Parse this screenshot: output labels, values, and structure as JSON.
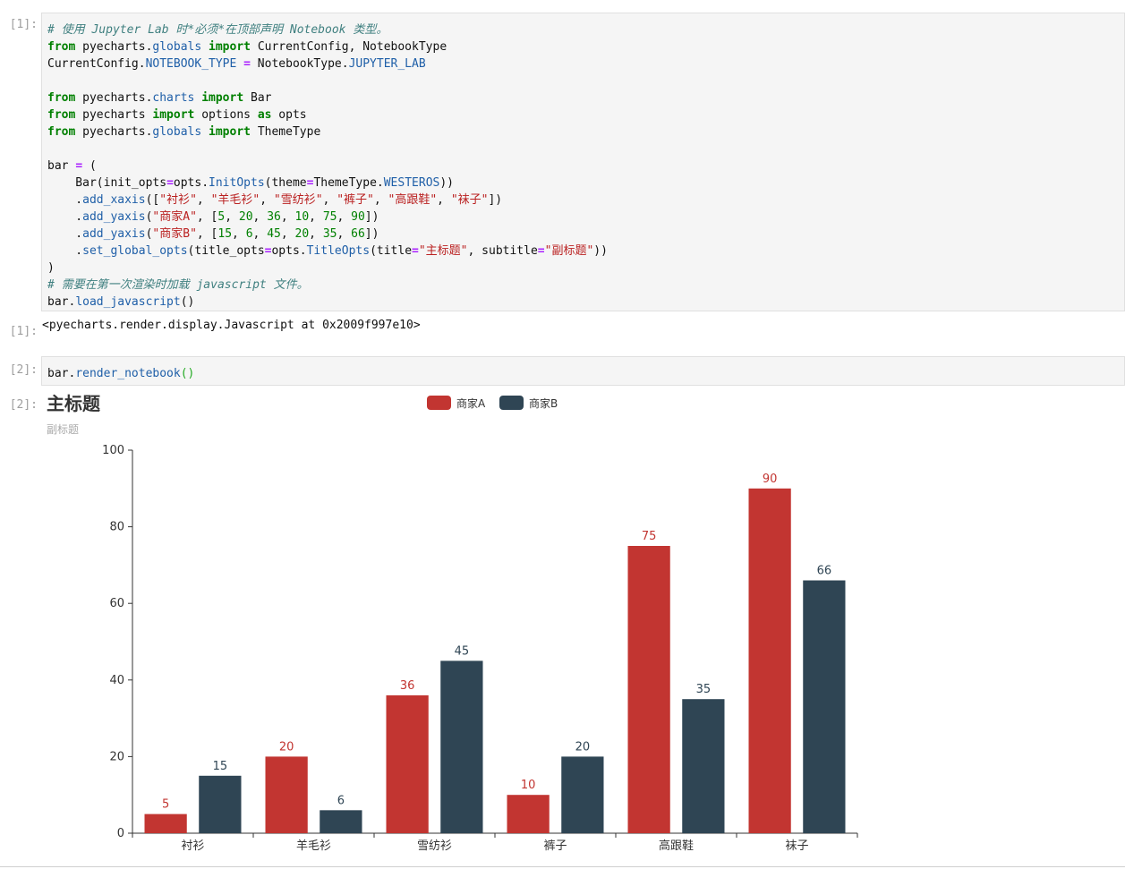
{
  "cell1": {
    "in_prompt": "[1]:",
    "out_prompt": "[1]:",
    "code": [
      [
        [
          "c",
          "# 使用 Jupyter Lab 时*必须*在顶部声明 Notebook 类型。"
        ]
      ],
      [
        [
          "k",
          "from"
        ],
        [
          "t",
          " pyecharts."
        ],
        [
          "a",
          "globals"
        ],
        [
          "t",
          " "
        ],
        [
          "k",
          "import"
        ],
        [
          "t",
          " CurrentConfig, NotebookType"
        ]
      ],
      [
        [
          "t",
          "CurrentConfig."
        ],
        [
          "a",
          "NOTEBOOK_TYPE"
        ],
        [
          "t",
          " "
        ],
        [
          "o",
          "="
        ],
        [
          "t",
          " NotebookType."
        ],
        [
          "a",
          "JUPYTER_LAB"
        ]
      ],
      [],
      [
        [
          "k",
          "from"
        ],
        [
          "t",
          " pyecharts."
        ],
        [
          "a",
          "charts"
        ],
        [
          "t",
          " "
        ],
        [
          "k",
          "import"
        ],
        [
          "t",
          " Bar"
        ]
      ],
      [
        [
          "k",
          "from"
        ],
        [
          "t",
          " pyecharts "
        ],
        [
          "k",
          "import"
        ],
        [
          "t",
          " options "
        ],
        [
          "k",
          "as"
        ],
        [
          "t",
          " opts"
        ]
      ],
      [
        [
          "k",
          "from"
        ],
        [
          "t",
          " pyecharts."
        ],
        [
          "a",
          "globals"
        ],
        [
          "t",
          " "
        ],
        [
          "k",
          "import"
        ],
        [
          "t",
          " ThemeType"
        ]
      ],
      [],
      [
        [
          "t",
          "bar "
        ],
        [
          "o",
          "="
        ],
        [
          "t",
          " ("
        ]
      ],
      [
        [
          "t",
          "    Bar(init_opts"
        ],
        [
          "o",
          "="
        ],
        [
          "t",
          "opts."
        ],
        [
          "a",
          "InitOpts"
        ],
        [
          "t",
          "(theme"
        ],
        [
          "o",
          "="
        ],
        [
          "t",
          "ThemeType."
        ],
        [
          "a",
          "WESTEROS"
        ],
        [
          "t",
          "))"
        ]
      ],
      [
        [
          "t",
          "    ."
        ],
        [
          "a",
          "add_xaxis"
        ],
        [
          "t",
          "(["
        ],
        [
          "s",
          "\"衬衫\""
        ],
        [
          "t",
          ", "
        ],
        [
          "s",
          "\"羊毛衫\""
        ],
        [
          "t",
          ", "
        ],
        [
          "s",
          "\"雪纺衫\""
        ],
        [
          "t",
          ", "
        ],
        [
          "s",
          "\"裤子\""
        ],
        [
          "t",
          ", "
        ],
        [
          "s",
          "\"高跟鞋\""
        ],
        [
          "t",
          ", "
        ],
        [
          "s",
          "\"袜子\""
        ],
        [
          "t",
          "])"
        ]
      ],
      [
        [
          "t",
          "    ."
        ],
        [
          "a",
          "add_yaxis"
        ],
        [
          "t",
          "("
        ],
        [
          "s",
          "\"商家A\""
        ],
        [
          "t",
          ", ["
        ],
        [
          "n",
          "5"
        ],
        [
          "t",
          ", "
        ],
        [
          "n",
          "20"
        ],
        [
          "t",
          ", "
        ],
        [
          "n",
          "36"
        ],
        [
          "t",
          ", "
        ],
        [
          "n",
          "10"
        ],
        [
          "t",
          ", "
        ],
        [
          "n",
          "75"
        ],
        [
          "t",
          ", "
        ],
        [
          "n",
          "90"
        ],
        [
          "t",
          "])"
        ]
      ],
      [
        [
          "t",
          "    ."
        ],
        [
          "a",
          "add_yaxis"
        ],
        [
          "t",
          "("
        ],
        [
          "s",
          "\"商家B\""
        ],
        [
          "t",
          ", ["
        ],
        [
          "n",
          "15"
        ],
        [
          "t",
          ", "
        ],
        [
          "n",
          "6"
        ],
        [
          "t",
          ", "
        ],
        [
          "n",
          "45"
        ],
        [
          "t",
          ", "
        ],
        [
          "n",
          "20"
        ],
        [
          "t",
          ", "
        ],
        [
          "n",
          "35"
        ],
        [
          "t",
          ", "
        ],
        [
          "n",
          "66"
        ],
        [
          "t",
          "])"
        ]
      ],
      [
        [
          "t",
          "    ."
        ],
        [
          "a",
          "set_global_opts"
        ],
        [
          "t",
          "(title_opts"
        ],
        [
          "o",
          "="
        ],
        [
          "t",
          "opts."
        ],
        [
          "a",
          "TitleOpts"
        ],
        [
          "t",
          "(title"
        ],
        [
          "o",
          "="
        ],
        [
          "s",
          "\"主标题\""
        ],
        [
          "t",
          ", subtitle"
        ],
        [
          "o",
          "="
        ],
        [
          "s",
          "\"副标题\""
        ],
        [
          "t",
          "))"
        ]
      ],
      [
        [
          "t",
          ")"
        ]
      ],
      [
        [
          "c",
          "# 需要在第一次渲染时加载 javascript 文件。"
        ]
      ],
      [
        [
          "t",
          "bar."
        ],
        [
          "a",
          "load_javascript"
        ],
        [
          "t",
          "()"
        ]
      ]
    ],
    "output": "<pyecharts.render.display.Javascript at 0x2009f997e10>"
  },
  "cell2": {
    "in_prompt": "[2]:",
    "out_prompt": "[2]:",
    "code": [
      [
        [
          "t",
          "bar."
        ],
        [
          "a",
          "render_notebook"
        ],
        [
          "p",
          "()"
        ]
      ]
    ]
  },
  "chart_data": {
    "type": "bar",
    "title": "主标题",
    "subtitle": "副标题",
    "categories": [
      "衬衫",
      "羊毛衫",
      "雪纺衫",
      "裤子",
      "高跟鞋",
      "袜子"
    ],
    "series": [
      {
        "name": "商家A",
        "values": [
          5,
          20,
          36,
          10,
          75,
          90
        ],
        "color": "#c23531"
      },
      {
        "name": "商家B",
        "values": [
          15,
          6,
          45,
          20,
          35,
          66
        ],
        "color": "#2f4554"
      }
    ],
    "ylim": [
      0,
      100
    ],
    "yticks": [
      0,
      20,
      40,
      60,
      80,
      100
    ],
    "legend_position": "top-center",
    "grid": false,
    "data_labels": true
  }
}
